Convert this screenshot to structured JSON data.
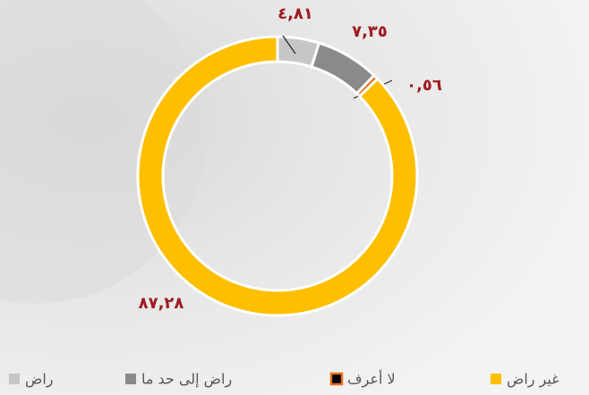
{
  "chart_data": {
    "type": "pie",
    "categories": [
      "راض",
      "راض إلى حد ما",
      "لا أعرف",
      "غير راض"
    ],
    "values": [
      4.81,
      7.35,
      0.56,
      87.28
    ],
    "value_labels": [
      "٤,٨١",
      "٧,٣٥",
      "٠,٥٦",
      "٨٧,٢٨"
    ],
    "colors": [
      "#c6c6c6",
      "#8a8a8a",
      "#e0701e",
      "#fdbf00"
    ]
  }
}
